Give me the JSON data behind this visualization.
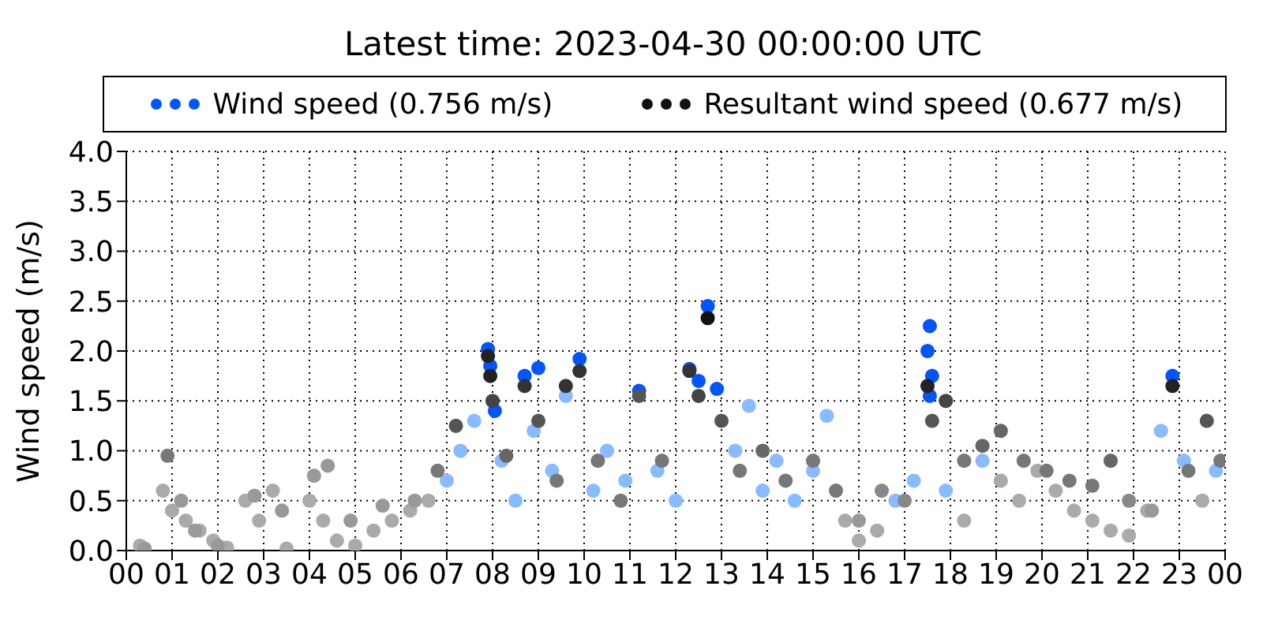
{
  "chart_data": {
    "type": "scatter",
    "title": "Latest time: 2023-04-30 00:00:00 UTC",
    "ylabel": "Wind speed (m/s)",
    "xlim": [
      0,
      24
    ],
    "xticks": [
      {
        "value": 0,
        "label": "00"
      },
      {
        "value": 1,
        "label": "01"
      },
      {
        "value": 2,
        "label": "02"
      },
      {
        "value": 3,
        "label": "03"
      },
      {
        "value": 4,
        "label": "04"
      },
      {
        "value": 5,
        "label": "05"
      },
      {
        "value": 6,
        "label": "06"
      },
      {
        "value": 7,
        "label": "07"
      },
      {
        "value": 8,
        "label": "08"
      },
      {
        "value": 9,
        "label": "09"
      },
      {
        "value": 10,
        "label": "10"
      },
      {
        "value": 11,
        "label": "11"
      },
      {
        "value": 12,
        "label": "12"
      },
      {
        "value": 13,
        "label": "13"
      },
      {
        "value": 14,
        "label": "14"
      },
      {
        "value": 15,
        "label": "15"
      },
      {
        "value": 16,
        "label": "16"
      },
      {
        "value": 17,
        "label": "17"
      },
      {
        "value": 18,
        "label": "18"
      },
      {
        "value": 19,
        "label": "19"
      },
      {
        "value": 20,
        "label": "20"
      },
      {
        "value": 21,
        "label": "21"
      },
      {
        "value": 22,
        "label": "22"
      },
      {
        "value": 23,
        "label": "23"
      },
      {
        "value": 24,
        "label": "00"
      }
    ],
    "ylim": [
      0,
      4
    ],
    "yticks": [
      {
        "value": 0,
        "label": "0.0"
      },
      {
        "value": 0.5,
        "label": "0.5"
      },
      {
        "value": 1,
        "label": "1.0"
      },
      {
        "value": 1.5,
        "label": "1.5"
      },
      {
        "value": 2,
        "label": "2.0"
      },
      {
        "value": 2.5,
        "label": "2.5"
      },
      {
        "value": 3,
        "label": "3.0"
      },
      {
        "value": 3.5,
        "label": "3.5"
      },
      {
        "value": 4,
        "label": "4.0"
      }
    ],
    "grid": true,
    "legend": "top",
    "marker": "circle",
    "series": [
      {
        "name": "Wind speed (0.756 m/s)",
        "color": "#0055ff",
        "x": [
          0.3,
          0.8,
          1.0,
          1.3,
          1.6,
          1.9,
          2.2,
          2.6,
          2.9,
          3.2,
          3.5,
          4.0,
          4.3,
          4.6,
          5.0,
          5.4,
          5.8,
          6.2,
          6.6,
          7.0,
          7.3,
          7.6,
          7.9,
          7.95,
          8.05,
          8.2,
          8.5,
          8.7,
          8.9,
          9.0,
          9.3,
          9.6,
          9.9,
          10.2,
          10.5,
          10.9,
          11.2,
          11.6,
          12.0,
          12.3,
          12.5,
          12.7,
          12.9,
          13.3,
          13.6,
          13.9,
          14.2,
          14.6,
          15.0,
          15.3,
          15.7,
          16.0,
          16.4,
          16.8,
          17.2,
          17.55,
          17.5,
          17.6,
          17.55,
          17.9,
          18.3,
          18.7,
          19.1,
          19.5,
          19.9,
          20.3,
          20.7,
          21.1,
          21.5,
          21.9,
          22.3,
          22.6,
          22.85,
          23.1,
          23.5,
          23.8
        ],
        "values": [
          0.05,
          0.6,
          0.4,
          0.3,
          0.2,
          0.1,
          0.03,
          0.5,
          0.3,
          0.6,
          0.02,
          0.5,
          0.3,
          0.1,
          0.05,
          0.2,
          0.3,
          0.4,
          0.5,
          0.7,
          1.0,
          1.3,
          2.02,
          1.85,
          1.4,
          0.9,
          0.5,
          1.75,
          1.2,
          1.83,
          0.8,
          1.55,
          1.92,
          0.6,
          1.0,
          0.7,
          1.6,
          0.8,
          0.5,
          1.82,
          1.7,
          2.45,
          1.62,
          1.0,
          1.45,
          0.6,
          0.9,
          0.5,
          0.8,
          1.35,
          0.3,
          0.1,
          0.2,
          0.5,
          0.7,
          2.25,
          2.0,
          1.75,
          1.55,
          0.6,
          0.3,
          0.9,
          0.7,
          0.5,
          0.8,
          0.6,
          0.4,
          0.3,
          0.2,
          0.15,
          0.4,
          1.2,
          1.75,
          0.9,
          0.5,
          0.8
        ],
        "colors": [
          "#aaaaaa",
          "#aaaaaa",
          "#aaaaaa",
          "#aaaaaa",
          "#aaaaaa",
          "#aaaaaa",
          "#aaaaaa",
          "#aaaaaa",
          "#aaaaaa",
          "#aaaaaa",
          "#aaaaaa",
          "#aaaaaa",
          "#aaaaaa",
          "#aaaaaa",
          "#aaaaaa",
          "#aaaaaa",
          "#aaaaaa",
          "#aaaaaa",
          "#aaaaaa",
          "#88bbff",
          "#88bbff",
          "#88bbff",
          "#0055ff",
          "#0055ff",
          "#0055ff",
          "#88bbff",
          "#88bbff",
          "#0055ff",
          "#88bbff",
          "#0055ff",
          "#88bbff",
          "#88bbff",
          "#0055ff",
          "#88bbff",
          "#88bbff",
          "#88bbff",
          "#0055ff",
          "#88bbff",
          "#88bbff",
          "#0055ff",
          "#0055ff",
          "#0055ff",
          "#0055ff",
          "#88bbff",
          "#88bbff",
          "#88bbff",
          "#88bbff",
          "#88bbff",
          "#88bbff",
          "#88bbff",
          "#aaaaaa",
          "#aaaaaa",
          "#aaaaaa",
          "#88bbff",
          "#88bbff",
          "#0055ff",
          "#0055ff",
          "#0055ff",
          "#0055ff",
          "#88bbff",
          "#aaaaaa",
          "#88bbff",
          "#aaaaaa",
          "#aaaaaa",
          "#aaaaaa",
          "#aaaaaa",
          "#aaaaaa",
          "#aaaaaa",
          "#aaaaaa",
          "#aaaaaa",
          "#aaaaaa",
          "#88bbff",
          "#0055ff",
          "#88bbff",
          "#aaaaaa",
          "#88bbff"
        ]
      },
      {
        "name": "Resultant wind speed (0.677 m/s)",
        "color": "#111111",
        "x": [
          0.4,
          0.9,
          1.2,
          1.5,
          2.0,
          2.8,
          3.4,
          4.1,
          4.4,
          4.9,
          5.6,
          6.3,
          6.8,
          7.2,
          7.9,
          7.95,
          8.0,
          8.3,
          8.7,
          9.0,
          9.4,
          9.6,
          9.9,
          10.3,
          10.8,
          11.2,
          11.7,
          12.3,
          12.5,
          12.7,
          13.0,
          13.4,
          13.9,
          14.4,
          15.0,
          15.5,
          16.0,
          16.5,
          17.0,
          17.5,
          17.6,
          17.9,
          18.3,
          18.7,
          19.1,
          19.6,
          20.1,
          20.6,
          21.1,
          21.5,
          21.9,
          22.4,
          22.85,
          23.2,
          23.6,
          23.9
        ],
        "values": [
          0.02,
          0.95,
          0.5,
          0.2,
          0.05,
          0.55,
          0.4,
          0.75,
          0.85,
          0.3,
          0.45,
          0.5,
          0.8,
          1.25,
          1.95,
          1.75,
          1.5,
          0.95,
          1.65,
          1.3,
          0.7,
          1.65,
          1.8,
          0.9,
          0.5,
          1.55,
          0.9,
          1.8,
          1.55,
          2.33,
          1.3,
          0.8,
          1.0,
          0.7,
          0.9,
          0.6,
          0.3,
          0.6,
          0.5,
          1.65,
          1.3,
          1.5,
          0.9,
          1.05,
          1.2,
          0.9,
          0.8,
          0.7,
          0.65,
          0.9,
          0.5,
          0.4,
          1.65,
          0.8,
          1.3,
          0.9
        ],
        "colors": [
          "#999999",
          "#777777",
          "#999999",
          "#999999",
          "#999999",
          "#999999",
          "#999999",
          "#999999",
          "#999999",
          "#999999",
          "#999999",
          "#999999",
          "#777777",
          "#555555",
          "#222222",
          "#222222",
          "#444444",
          "#666666",
          "#333333",
          "#555555",
          "#777777",
          "#333333",
          "#333333",
          "#777777",
          "#777777",
          "#555555",
          "#777777",
          "#333333",
          "#444444",
          "#111111",
          "#555555",
          "#777777",
          "#666666",
          "#777777",
          "#777777",
          "#777777",
          "#999999",
          "#888888",
          "#888888",
          "#222222",
          "#555555",
          "#444444",
          "#777777",
          "#666666",
          "#666666",
          "#777777",
          "#777777",
          "#777777",
          "#777777",
          "#666666",
          "#888888",
          "#999999",
          "#222222",
          "#777777",
          "#555555",
          "#777777"
        ]
      }
    ]
  }
}
